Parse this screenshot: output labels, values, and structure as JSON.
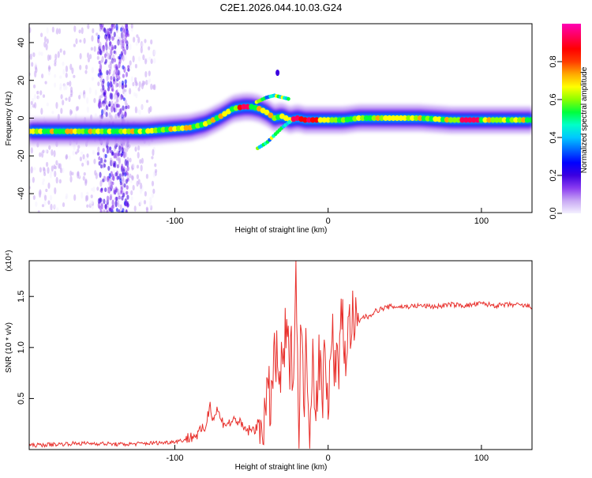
{
  "title": "C2E1.2026.044.10.03.G24",
  "chart_data": [
    {
      "type": "heatmap",
      "name": "spectrogram",
      "xlabel": "Height of straight line (km)",
      "ylabel": "Frequency (Hz)",
      "xlim": [
        -195,
        133
      ],
      "ylim": [
        -50,
        50
      ],
      "xticks": [
        -100,
        0,
        100
      ],
      "xtick_labels": [
        "-100",
        "0",
        "100"
      ],
      "yticks": [
        -40,
        -20,
        0,
        20,
        40
      ],
      "ytick_labels": [
        "-40",
        "-20",
        "0",
        "20",
        "40"
      ],
      "colorbar": {
        "label": "Normalized spectral amplitude",
        "range": [
          0,
          1
        ],
        "ticks": [
          0.0,
          0.2,
          0.4,
          0.6,
          0.8
        ],
        "tick_labels": [
          "0.0",
          "0.2",
          "0.4",
          "0.6",
          "0.8"
        ],
        "colors": [
          "#f4f0ff",
          "#c8a8f4",
          "#8a3cf0",
          "#3c00e0",
          "#0000ff",
          "#0064ff",
          "#00c8ff",
          "#00ffc8",
          "#00ff3c",
          "#8cff00",
          "#ffff00",
          "#ffaa00",
          "#ff3c00",
          "#ff0000",
          "#ff005a",
          "#ff00b4"
        ]
      },
      "ridge": {
        "x": [
          -195,
          -180,
          -165,
          -150,
          -135,
          -120,
          -105,
          -90,
          -80,
          -70,
          -62,
          -55,
          -50,
          -45,
          -40,
          -35,
          -30,
          -25,
          -20,
          -15,
          -10,
          -5,
          0,
          10,
          20,
          40,
          60,
          80,
          100,
          120,
          133
        ],
        "y": [
          -7,
          -7,
          -7,
          -7,
          -7,
          -7,
          -6,
          -5,
          -3,
          1,
          5,
          6,
          6,
          5,
          3,
          0,
          1,
          -1,
          0,
          -1,
          -1,
          -1,
          -1,
          -1,
          0,
          0,
          0,
          -1,
          -1,
          -1,
          -1
        ]
      },
      "branches": [
        {
          "x": [
            -48,
            -40,
            -35,
            -30,
            -25
          ],
          "y": [
            8,
            11,
            12,
            11,
            10
          ]
        },
        {
          "x": [
            -46,
            -40,
            -35,
            -30,
            -25
          ],
          "y": [
            -16,
            -13,
            -9,
            -5,
            -2
          ]
        }
      ],
      "noise_bands": [
        {
          "x_range": [
            -195,
            -112
          ],
          "level": "weak"
        },
        {
          "x_range": [
            -150,
            -130
          ],
          "level": "strong"
        }
      ],
      "isolated_peaks": [
        {
          "x": -33,
          "y": 24
        }
      ]
    },
    {
      "type": "line",
      "name": "snr",
      "xlabel": "Height of straight line (km)",
      "ylabel": "SNR (10 * v/v)",
      "y_multiplier": "(x10⁴)",
      "xlim": [
        -195,
        133
      ],
      "ylim": [
        0,
        1.85
      ],
      "xticks": [
        -100,
        0,
        100
      ],
      "xtick_labels": [
        "-100",
        "0",
        "100"
      ],
      "yticks": [
        0.5,
        1.0,
        1.5
      ],
      "ytick_labels": [
        "0.5",
        "1.0",
        "1.5"
      ],
      "color": "#e8302c",
      "series": [
        {
          "name": "SNR",
          "x": [
            -195,
            -180,
            -165,
            -150,
            -135,
            -120,
            -105,
            -95,
            -85,
            -80,
            -77,
            -75,
            -72,
            -70,
            -65,
            -60,
            -55,
            -50,
            -45,
            -40,
            -37,
            -35,
            -32,
            -30,
            -28,
            -25,
            -22,
            -21,
            -20,
            -19,
            -18,
            -16,
            -14,
            -12,
            -10,
            -8,
            -6,
            -4,
            -2,
            0,
            3,
            6,
            9,
            12,
            15,
            18,
            22,
            26,
            30,
            35,
            40,
            50,
            60,
            70,
            80,
            90,
            100,
            110,
            120,
            133
          ],
          "y": [
            0.04,
            0.05,
            0.06,
            0.06,
            0.05,
            0.06,
            0.07,
            0.09,
            0.15,
            0.22,
            0.45,
            0.3,
            0.4,
            0.28,
            0.25,
            0.3,
            0.2,
            0.18,
            0.25,
            0.4,
            0.55,
            0.9,
            0.75,
            0.7,
            1.1,
            0.85,
            1.0,
            1.85,
            0.75,
            0.3,
            1.2,
            0.5,
            1.0,
            0.3,
            0.95,
            0.45,
            0.9,
            0.5,
            1.0,
            0.55,
            1.05,
            0.75,
            1.25,
            0.95,
            1.3,
            1.15,
            1.3,
            1.3,
            1.35,
            1.38,
            1.4,
            1.4,
            1.41,
            1.4,
            1.42,
            1.41,
            1.43,
            1.41,
            1.42,
            1.4
          ]
        }
      ]
    }
  ]
}
